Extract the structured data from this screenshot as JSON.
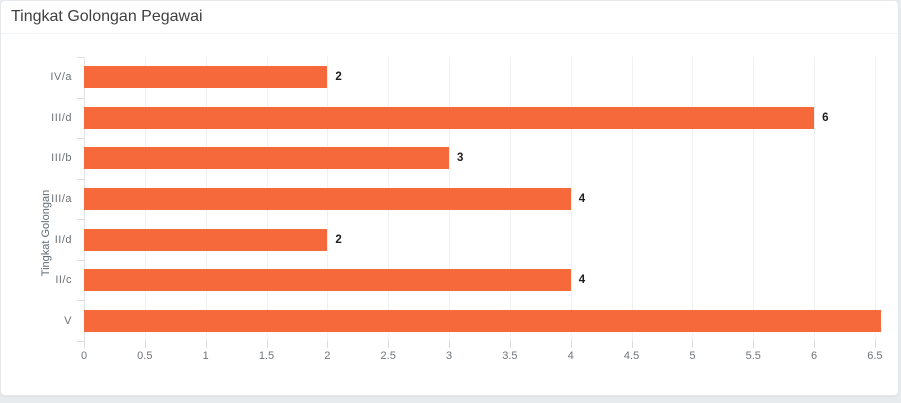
{
  "card": {
    "title": "Tingkat Golongan Pegawai"
  },
  "chart_data": {
    "type": "bar",
    "orientation": "horizontal",
    "title": "Tingkat Golongan Pegawai",
    "xlabel": "",
    "ylabel": "Tingkat Golongan",
    "categories": [
      "IV/a",
      "III/d",
      "III/b",
      "III/a",
      "II/d",
      "II/c",
      "V"
    ],
    "values": [
      2,
      6,
      3,
      4,
      2,
      4,
      7
    ],
    "value_labels": [
      "2",
      "6",
      "3",
      "4",
      "2",
      "4",
      ""
    ],
    "xlim": [
      0,
      6.55
    ],
    "xticks": [
      0,
      0.5,
      1,
      1.5,
      2,
      2.5,
      3,
      3.5,
      4,
      4.5,
      5,
      5.5,
      6,
      6.5
    ],
    "xtick_labels": [
      "0",
      "0.5",
      "1",
      "1.5",
      "2",
      "2.5",
      "3",
      "3.5",
      "4",
      "4.5",
      "5",
      "5.5",
      "6",
      "6.5"
    ],
    "grid": "vertical",
    "legend": "none",
    "last_bar_clipped_at_plot_edge": true
  },
  "colors": {
    "bar": "#f6693b",
    "page_bg": "#e8ebee",
    "card_bg": "#ffffff",
    "card_border": "#e4e8eb",
    "grid": "#f0f1f2",
    "axis_text": "#707478",
    "value_label_text": "#1d1d1d",
    "title_text": "#404040"
  }
}
